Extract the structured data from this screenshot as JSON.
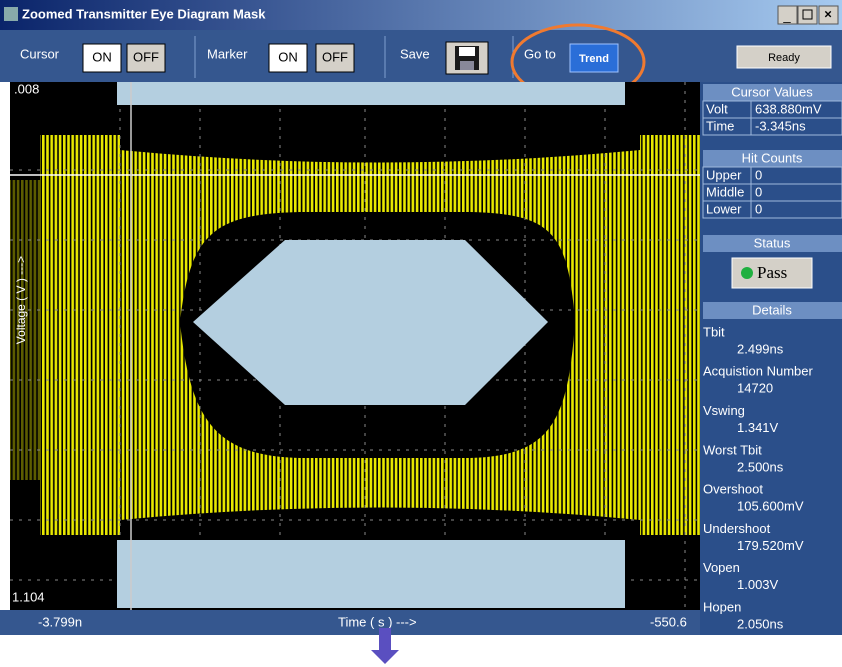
{
  "window": {
    "title": "Zoomed Transmitter Eye Diagram Mask",
    "status": "Ready"
  },
  "toolbar": {
    "cursor": {
      "label": "Cursor",
      "on": "ON",
      "off": "OFF"
    },
    "marker": {
      "label": "Marker",
      "on": "ON",
      "off": "OFF"
    },
    "save": {
      "label": "Save"
    },
    "goto": {
      "label": "Go to",
      "button": "Trend"
    }
  },
  "plot": {
    "y_axis_label": "Voltage ( V ) --->",
    "y_top": ".008",
    "y_bottom": "1.104",
    "x_left": "-3.799n",
    "x_right": "-550.6",
    "x_axis_label": "Time ( s ) --->"
  },
  "panel": {
    "cursor_values": {
      "title": "Cursor Values",
      "rows": [
        [
          "Volt",
          "638.880mV"
        ],
        [
          "Time",
          "-3.345ns"
        ]
      ]
    },
    "hit_counts": {
      "title": "Hit Counts",
      "rows": [
        [
          "Upper",
          "0"
        ],
        [
          "Middle",
          "0"
        ],
        [
          "Lower",
          "0"
        ]
      ]
    },
    "status": {
      "title": "Status",
      "value": "Pass"
    },
    "details": {
      "title": "Details",
      "items": [
        [
          "Tbit",
          "2.499ns"
        ],
        [
          "Acquistion Number",
          "14720"
        ],
        [
          "Vswing",
          "1.341V"
        ],
        [
          "Worst Tbit",
          "2.500ns"
        ],
        [
          "Overshoot",
          "105.600mV"
        ],
        [
          "Undershoot",
          "179.520mV"
        ],
        [
          "Vopen",
          "1.003V"
        ],
        [
          "Hopen",
          "2.050ns"
        ]
      ]
    }
  }
}
